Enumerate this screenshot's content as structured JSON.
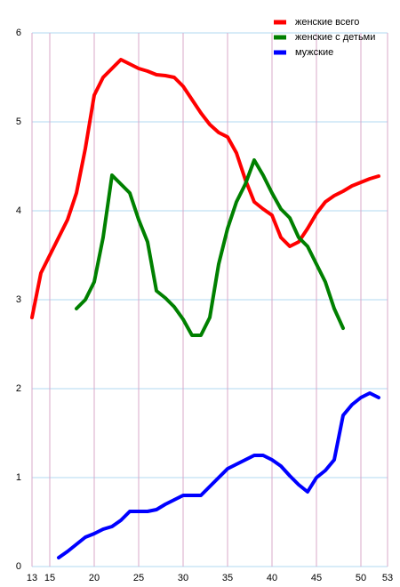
{
  "chart_data": {
    "type": "line",
    "xlim": [
      13,
      53
    ],
    "xticks": [
      13,
      15,
      20,
      25,
      30,
      35,
      40,
      45,
      50,
      53
    ],
    "ylim": [
      0,
      6
    ],
    "yticks": [
      0,
      1,
      2,
      3,
      4,
      5,
      6
    ],
    "grid": true,
    "legend": "top-right",
    "series": [
      {
        "name": "женские всего",
        "color": "#ff0000",
        "x": [
          13,
          14,
          15,
          16,
          17,
          18,
          19,
          20,
          21,
          22,
          23,
          24,
          25,
          26,
          27,
          28,
          29,
          30,
          31,
          32,
          33,
          34,
          35,
          36,
          37,
          38,
          39,
          40,
          41,
          42,
          43,
          44,
          45,
          46,
          47,
          48,
          49,
          50,
          51,
          52
        ],
        "values": [
          2.8,
          3.3,
          3.5,
          3.7,
          3.9,
          4.2,
          4.7,
          5.3,
          5.5,
          5.6,
          5.7,
          5.65,
          5.6,
          5.57,
          5.53,
          5.52,
          5.5,
          5.4,
          5.25,
          5.1,
          4.97,
          4.88,
          4.83,
          4.65,
          4.35,
          4.1,
          4.02,
          3.95,
          3.7,
          3.6,
          3.65,
          3.8,
          3.97,
          4.1,
          4.17,
          4.22,
          4.28,
          4.32,
          4.36,
          4.39
        ]
      },
      {
        "name": "женские с детьми",
        "color": "#008000",
        "x": [
          18,
          19,
          20,
          21,
          22,
          23,
          24,
          25,
          26,
          27,
          28,
          29,
          30,
          31,
          32,
          33,
          34,
          35,
          36,
          37,
          38,
          39,
          40,
          41,
          42,
          43,
          44,
          45,
          46,
          47,
          48
        ],
        "values": [
          2.9,
          3.0,
          3.2,
          3.7,
          4.4,
          4.3,
          4.2,
          3.9,
          3.65,
          3.1,
          3.02,
          2.92,
          2.78,
          2.6,
          2.6,
          2.8,
          3.4,
          3.8,
          4.1,
          4.3,
          4.57,
          4.4,
          4.2,
          4.02,
          3.92,
          3.7,
          3.6,
          3.4,
          3.2,
          2.9,
          2.68
        ]
      },
      {
        "name": "мужские",
        "color": "#0000ff",
        "x": [
          16,
          17,
          18,
          19,
          20,
          21,
          22,
          23,
          24,
          25,
          26,
          27,
          28,
          29,
          30,
          31,
          32,
          33,
          34,
          35,
          36,
          37,
          38,
          39,
          40,
          41,
          42,
          43,
          44,
          45,
          46,
          47,
          48,
          49,
          50,
          51,
          52
        ],
        "values": [
          0.1,
          0.17,
          0.25,
          0.33,
          0.37,
          0.42,
          0.45,
          0.52,
          0.62,
          0.62,
          0.62,
          0.64,
          0.7,
          0.75,
          0.8,
          0.8,
          0.8,
          0.9,
          1.0,
          1.1,
          1.15,
          1.2,
          1.25,
          1.25,
          1.2,
          1.13,
          1.02,
          0.92,
          0.84,
          1.0,
          1.08,
          1.2,
          1.7,
          1.82,
          1.9,
          1.95,
          1.9
        ]
      }
    ]
  }
}
